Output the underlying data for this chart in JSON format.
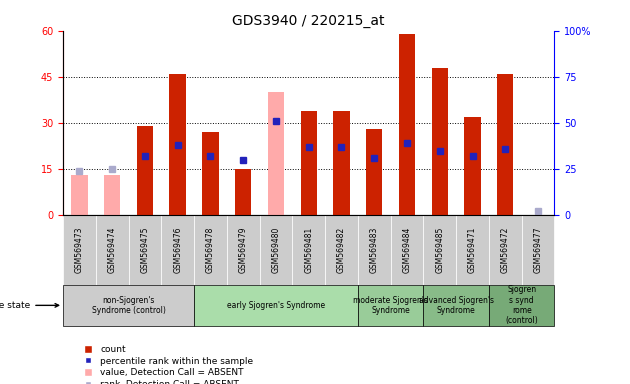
{
  "title": "GDS3940 / 220215_at",
  "samples": [
    "GSM569473",
    "GSM569474",
    "GSM569475",
    "GSM569476",
    "GSM569478",
    "GSM569479",
    "GSM569480",
    "GSM569481",
    "GSM569482",
    "GSM569483",
    "GSM569484",
    "GSM569485",
    "GSM569471",
    "GSM569472",
    "GSM569477"
  ],
  "count": [
    0,
    0,
    29,
    46,
    27,
    15,
    0,
    34,
    34,
    28,
    59,
    48,
    32,
    46,
    0
  ],
  "percentile_rank": [
    0,
    0,
    32,
    38,
    32,
    30,
    51,
    37,
    37,
    31,
    39,
    35,
    32,
    36,
    2
  ],
  "value_absent": [
    13,
    13,
    0,
    0,
    0,
    0,
    40,
    0,
    0,
    0,
    0,
    0,
    0,
    0,
    0
  ],
  "rank_absent": [
    24,
    25,
    0,
    0,
    0,
    0,
    0,
    0,
    0,
    0,
    0,
    0,
    0,
    0,
    2
  ],
  "is_absent_count": [
    true,
    true,
    false,
    false,
    false,
    false,
    true,
    false,
    false,
    false,
    false,
    false,
    false,
    false,
    true
  ],
  "is_absent_rank": [
    true,
    true,
    false,
    false,
    false,
    false,
    false,
    false,
    false,
    false,
    false,
    false,
    false,
    false,
    true
  ],
  "groups": [
    {
      "label": "non-Sjogren's\nSyndrome (control)",
      "start": 0,
      "end": 4,
      "color": "#cccccc"
    },
    {
      "label": "early Sjogren's Syndrome",
      "start": 4,
      "end": 9,
      "color": "#aaddaa"
    },
    {
      "label": "moderate Sjogren's\nSyndrome",
      "start": 9,
      "end": 11,
      "color": "#99cc99"
    },
    {
      "label": "advanced Sjogren's\nSyndrome",
      "start": 11,
      "end": 13,
      "color": "#88bb88"
    },
    {
      "label": "Sjogren\ns synd\nrome\n(control)",
      "start": 13,
      "end": 15,
      "color": "#77aa77"
    }
  ],
  "bar_color_red": "#cc2200",
  "bar_color_pink": "#ffaaaa",
  "bar_color_blue": "#2222bb",
  "bar_color_lightblue": "#aaaacc",
  "left_ylim": [
    0,
    60
  ],
  "right_ylim": [
    0,
    100
  ],
  "left_yticks": [
    0,
    15,
    30,
    45,
    60
  ],
  "right_yticks": [
    0,
    25,
    50,
    75,
    100
  ],
  "right_yticklabels": [
    "0",
    "25",
    "50",
    "75",
    "100%"
  ],
  "bar_width": 0.5,
  "tick_label_gray": "#cccccc",
  "sample_box_color": "#cccccc"
}
